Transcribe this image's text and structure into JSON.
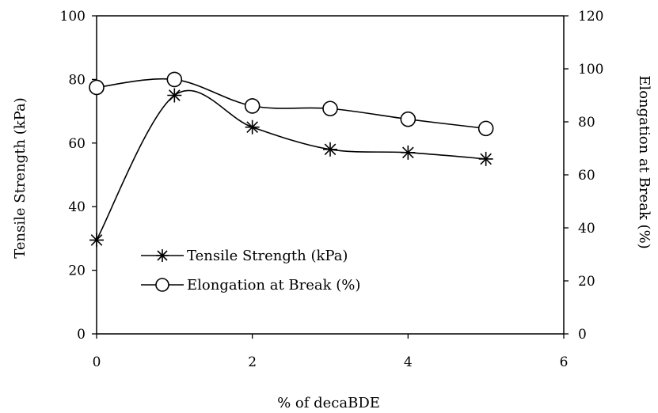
{
  "chart_data": {
    "type": "line",
    "title": "",
    "xlabel": "% of decaBDE",
    "ylabel_left": "Tensile Strength (kPa)",
    "ylabel_right": "Elongation at Break (%)",
    "xlim": [
      0,
      6
    ],
    "ylim_left": [
      0,
      100
    ],
    "ylim_right": [
      0,
      120
    ],
    "x_ticks": [
      "0",
      "2",
      "4",
      "6"
    ],
    "y_left_ticks": [
      "0",
      "20",
      "40",
      "60",
      "80",
      "100"
    ],
    "y_right_ticks": [
      "0",
      "20",
      "40",
      "60",
      "80",
      "100",
      "120"
    ],
    "grid": false,
    "legend_position": "lower-left",
    "series": [
      {
        "name": "Tensile Strength (kPa)",
        "axis": "left",
        "marker": "asterisk",
        "x": [
          0,
          1,
          2,
          3,
          4,
          5
        ],
        "y": [
          29.5,
          75,
          65,
          58,
          57,
          55
        ]
      },
      {
        "name": "Elongation at Break (%)",
        "axis": "right",
        "marker": "circle",
        "x": [
          0,
          1,
          2,
          3,
          4,
          5
        ],
        "y": [
          93,
          96,
          86,
          85,
          81,
          77.5
        ]
      }
    ]
  }
}
